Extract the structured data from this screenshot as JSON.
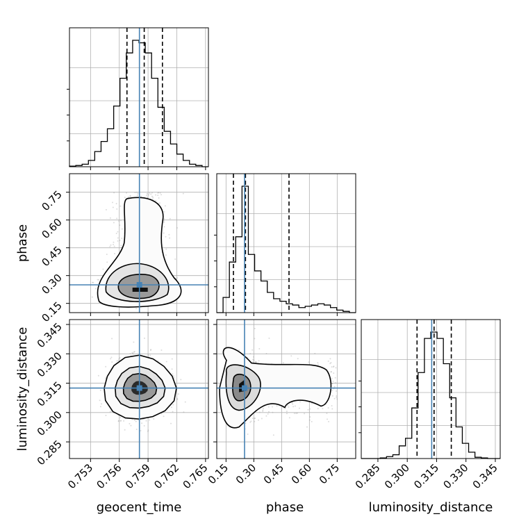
{
  "chart_data": {
    "type": "corner",
    "grid": true,
    "parameters": [
      "geocent_time",
      "phase",
      "luminosity_distance"
    ],
    "axis_labels": {
      "geocent_time": "geocent_time",
      "phase": "phase",
      "luminosity_distance": "luminosity_distance"
    },
    "ranges": {
      "geocent_time": [
        0.7508,
        0.7653
      ],
      "phase": [
        0.1,
        0.85
      ],
      "luminosity_distance": [
        0.2765,
        0.3475
      ]
    },
    "ticks": {
      "geocent_time": [
        "0.753",
        "0.756",
        "0.759",
        "0.762",
        "0.765"
      ],
      "phase": [
        "0.15",
        "0.30",
        "0.45",
        "0.60",
        "0.75"
      ],
      "luminosity_distance": [
        "0.285",
        "0.300",
        "0.315",
        "0.330",
        "0.345"
      ]
    },
    "truths": {
      "geocent_time": 0.7581,
      "phase": 0.25,
      "luminosity_distance": 0.3125
    },
    "quantiles": {
      "geocent_time": [
        0.7568,
        0.7586,
        0.7605
      ],
      "phase": [
        0.19,
        0.255,
        0.49
      ],
      "luminosity_distance": [
        0.305,
        0.3137,
        0.3225
      ]
    },
    "histograms": {
      "geocent_time": [
        0.5,
        1,
        2,
        5,
        12,
        20,
        30,
        48,
        70,
        90,
        100,
        98,
        90,
        70,
        47,
        28,
        18,
        10,
        5,
        2,
        1,
        0
      ],
      "phase": [
        0,
        12,
        40,
        60,
        100,
        46,
        33,
        25,
        16,
        11,
        9,
        7,
        6,
        4,
        5,
        6,
        7,
        6,
        4,
        2,
        1,
        0
      ],
      "luminosity_distance": [
        0,
        0,
        0,
        0.5,
        1.5,
        3,
        10,
        16,
        40,
        68,
        95,
        100,
        95,
        75,
        48,
        25,
        12,
        5,
        1,
        0.5,
        0,
        0
      ]
    }
  }
}
